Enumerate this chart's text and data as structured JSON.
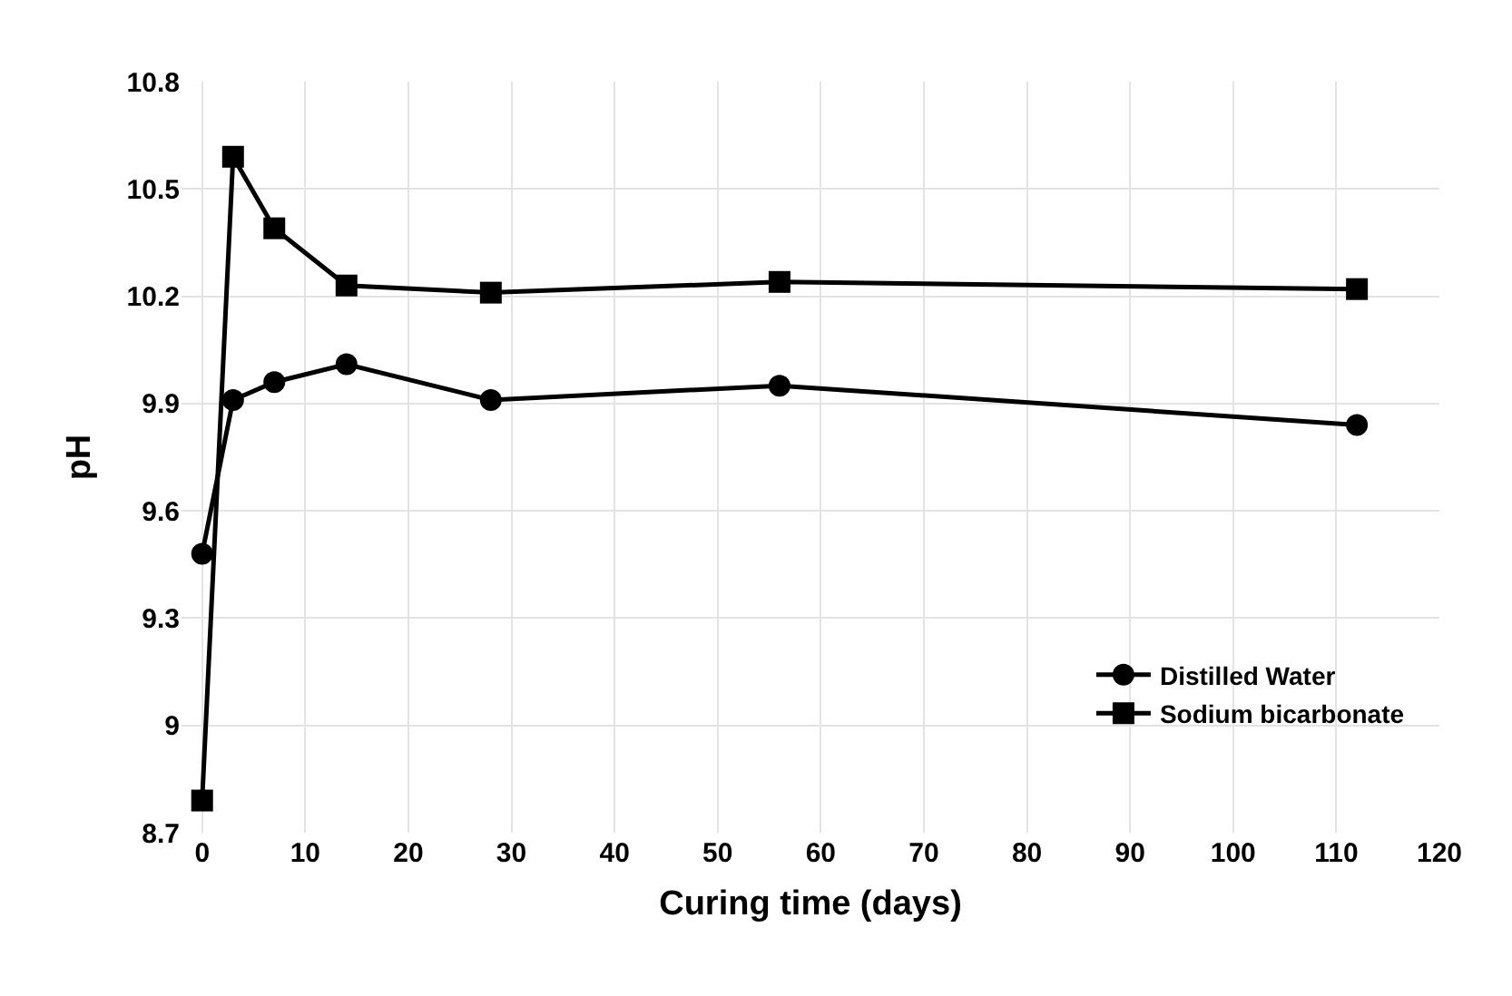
{
  "chart_data": {
    "type": "line",
    "xlabel": "Curing time (days)",
    "ylabel": "pH",
    "xlim": [
      -2,
      120
    ],
    "xticks": [
      0,
      10,
      20,
      30,
      40,
      50,
      60,
      70,
      80,
      90,
      100,
      110,
      120
    ],
    "ylim": [
      8.7,
      10.8
    ],
    "yticks": [
      8.7,
      9,
      9.3,
      9.6,
      9.9,
      10.2,
      10.5,
      10.8
    ],
    "grid": true,
    "legend": "bottom right",
    "line_style": "solid",
    "series": [
      {
        "name": "Distilled Water",
        "color": "#000000",
        "marker": "circle",
        "x": [
          0,
          3,
          7,
          14,
          28,
          56,
          112
        ],
        "values": [
          9.48,
          9.91,
          9.96,
          10.01,
          9.91,
          9.95,
          9.84
        ]
      },
      {
        "name": "Sodium bicarbonate",
        "color": "#000000",
        "marker": "square",
        "x": [
          0,
          3,
          7,
          14,
          28,
          56,
          112
        ],
        "values": [
          8.79,
          10.59,
          10.39,
          10.23,
          10.21,
          10.24,
          10.22
        ]
      }
    ]
  }
}
